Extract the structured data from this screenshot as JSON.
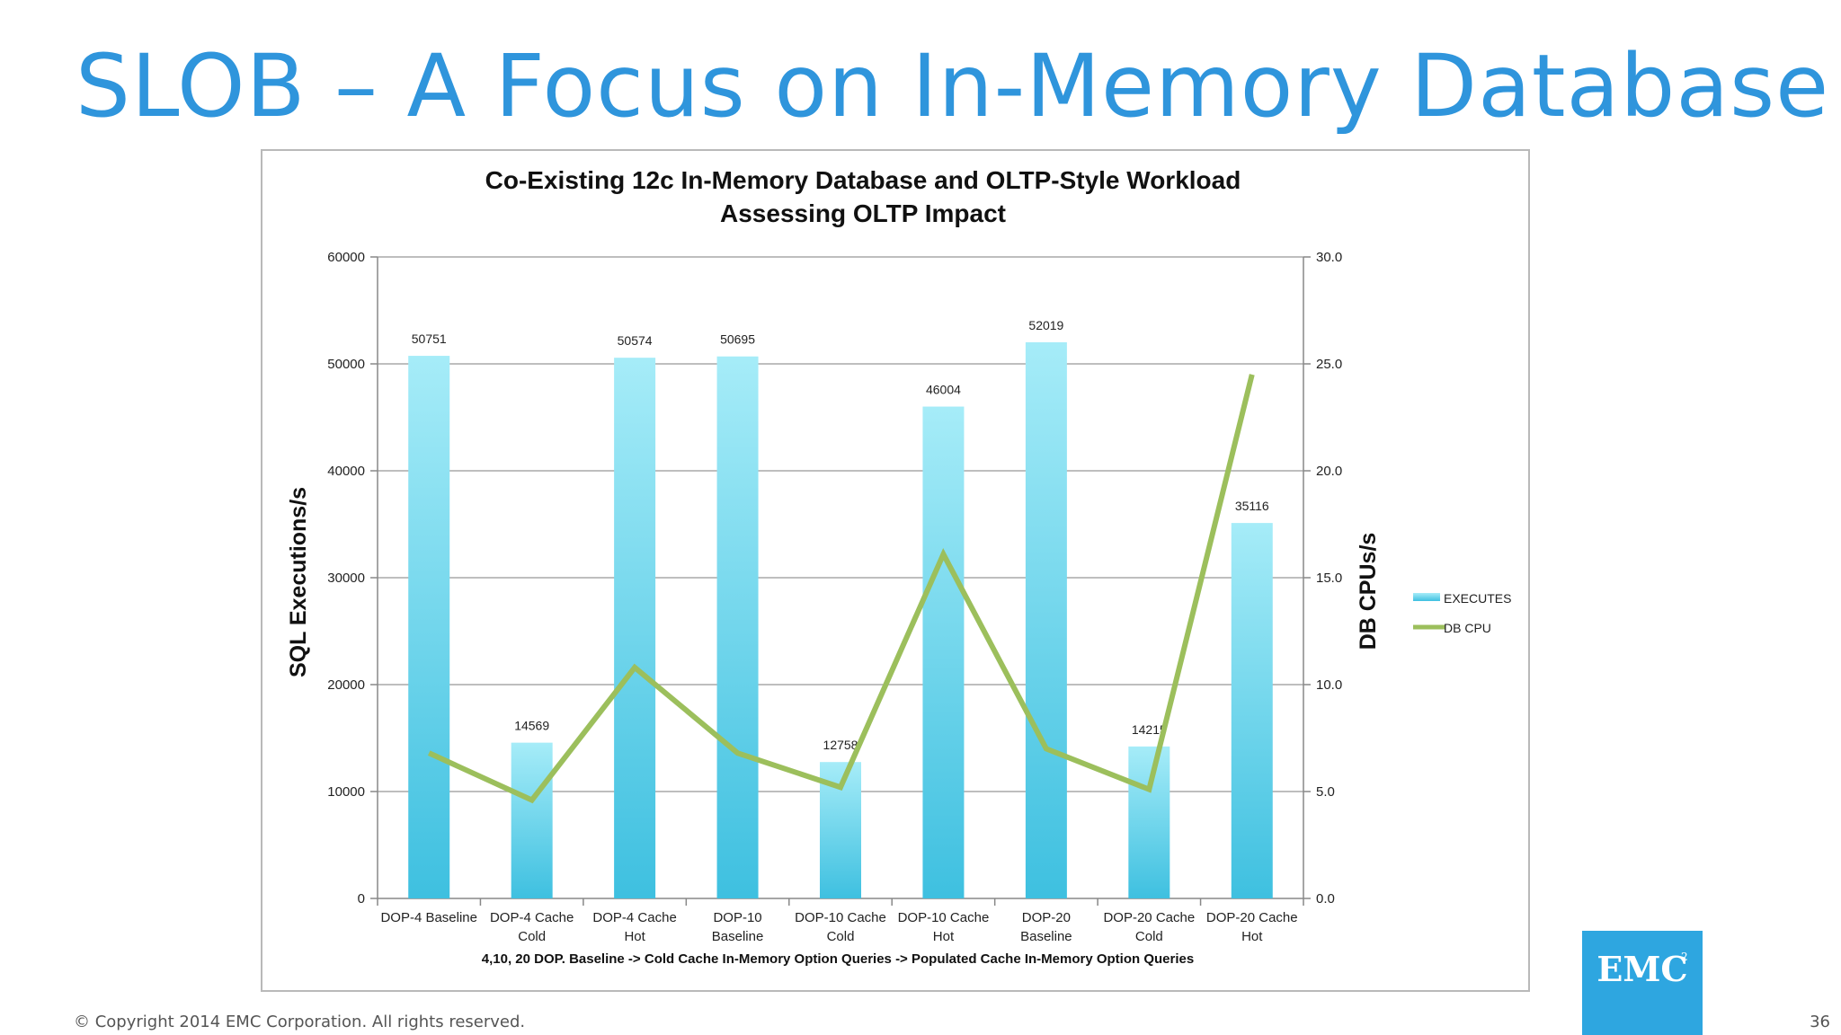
{
  "slide": {
    "title": "SLOB – A Focus on In-Memory Database",
    "copyright": "© Copyright 2014 EMC Corporation. All rights reserved.",
    "page_number": "36",
    "logo_text": "EMC",
    "logo_superscript": "2"
  },
  "colors": {
    "title": "#2f95dc",
    "bar_top": "#a6ecf8",
    "bar_bottom": "#3ec0e0",
    "line": "#9cbf5c",
    "logo": "#2ea6e0"
  },
  "chart_data": {
    "type": "bar",
    "title": [
      "Co-Existing 12c In-Memory Database and OLTP-Style Workload",
      "Assessing OLTP Impact"
    ],
    "xlabel": "4,10, 20 DOP. Baseline -> Cold Cache In-Memory Option Queries -> Populated Cache In-Memory Option Queries",
    "ylabel": "SQL Executions/s",
    "y2label": "DB CPUs/s",
    "categories": [
      [
        "DOP-4 Baseline"
      ],
      [
        "DOP-4 Cache",
        "Cold"
      ],
      [
        "DOP-4 Cache",
        "Hot"
      ],
      [
        "DOP-10",
        "Baseline"
      ],
      [
        "DOP-10 Cache",
        "Cold"
      ],
      [
        "DOP-10 Cache",
        "Hot"
      ],
      [
        "DOP-20",
        "Baseline"
      ],
      [
        "DOP-20 Cache",
        "Cold"
      ],
      [
        "DOP-20 Cache",
        "Hot"
      ]
    ],
    "series": [
      {
        "name": "EXECUTES",
        "kind": "bar",
        "axis": "left",
        "values": [
          50751,
          14569,
          50574,
          50695,
          12758,
          46004,
          52019,
          14215,
          35116
        ],
        "data_labels": [
          "50751",
          "14569",
          "50574",
          "50695",
          "12758",
          "46004",
          "52019",
          "14215",
          "35116"
        ]
      },
      {
        "name": "DB CPU",
        "kind": "line",
        "axis": "right",
        "values": [
          6.8,
          4.6,
          10.8,
          6.8,
          5.2,
          16.1,
          7.0,
          5.1,
          24.5
        ]
      }
    ],
    "ylim": [
      0,
      60000
    ],
    "yticks": [
      "0",
      "10000",
      "20000",
      "30000",
      "40000",
      "50000",
      "60000"
    ],
    "y2lim": [
      0,
      30
    ],
    "y2ticks": [
      "0.0",
      "5.0",
      "10.0",
      "15.0",
      "20.0",
      "25.0",
      "30.0"
    ],
    "grid": true,
    "legend_position": "right"
  }
}
